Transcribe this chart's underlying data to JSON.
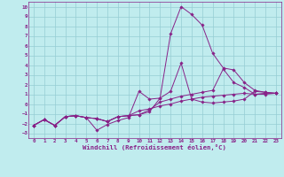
{
  "xlabel": "Windchill (Refroidissement éolien,°C)",
  "bg_color": "#c0ecee",
  "grid_color": "#96cdd4",
  "line_color": "#882288",
  "xlim": [
    -0.5,
    23.5
  ],
  "ylim": [
    -3.5,
    10.5
  ],
  "xticks": [
    0,
    1,
    2,
    3,
    4,
    5,
    6,
    7,
    8,
    9,
    10,
    11,
    12,
    13,
    14,
    15,
    16,
    17,
    18,
    19,
    20,
    21,
    22,
    23
  ],
  "yticks": [
    -3,
    -2,
    -1,
    0,
    1,
    2,
    3,
    4,
    5,
    6,
    7,
    8,
    9,
    10
  ],
  "series": [
    [
      -2.2,
      -1.6,
      -2.2,
      -1.3,
      -1.2,
      -1.4,
      -2.7,
      -2.1,
      -1.7,
      -1.4,
      1.3,
      0.5,
      0.6,
      7.2,
      10.0,
      9.2,
      8.1,
      5.2,
      3.7,
      3.5,
      2.2,
      1.4,
      1.2,
      1.1
    ],
    [
      -2.2,
      -1.6,
      -2.2,
      -1.3,
      -1.2,
      -1.4,
      -1.5,
      -1.8,
      -1.3,
      -1.2,
      -1.1,
      -0.8,
      0.6,
      1.3,
      4.2,
      0.5,
      0.2,
      0.1,
      0.2,
      0.3,
      0.5,
      1.3,
      1.2,
      1.1
    ],
    [
      -2.2,
      -1.6,
      -2.2,
      -1.3,
      -1.2,
      -1.4,
      -1.5,
      -1.8,
      -1.3,
      -1.2,
      -1.1,
      -0.6,
      0.2,
      0.5,
      0.8,
      1.0,
      1.2,
      1.4,
      3.6,
      2.2,
      1.7,
      1.0,
      1.1,
      1.1
    ],
    [
      -2.2,
      -1.6,
      -2.2,
      -1.3,
      -1.2,
      -1.4,
      -1.5,
      -1.8,
      -1.3,
      -1.2,
      -0.7,
      -0.5,
      -0.2,
      0.0,
      0.3,
      0.5,
      0.7,
      0.8,
      0.9,
      1.0,
      1.1,
      1.0,
      1.0,
      1.1
    ]
  ]
}
